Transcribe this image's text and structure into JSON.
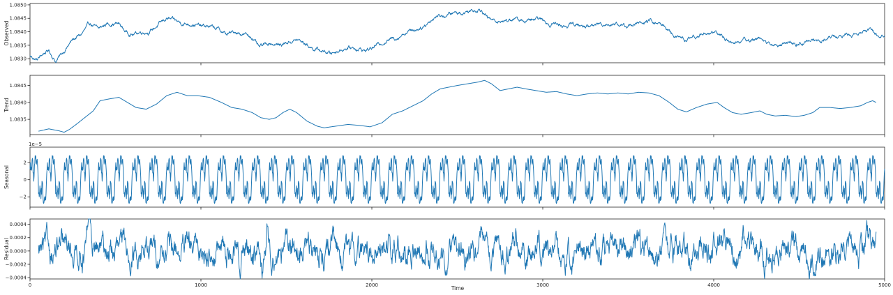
{
  "chart_data": {
    "type": "line",
    "kind": "seasonal-decomposition",
    "xlabel": "Time",
    "xlim": [
      0,
      5000
    ],
    "xticks": [
      0,
      1000,
      2000,
      3000,
      4000,
      5000
    ],
    "line_color": "#1f77b4",
    "grid": false,
    "panels": [
      {
        "ylabel": "Observed",
        "ylim": [
          1.08285,
          1.08505
        ],
        "yticks": [
          1.083,
          1.0835,
          1.084,
          1.0845,
          1.085
        ],
        "ytick_labels": [
          "1.0830",
          "1.0835",
          "1.0840",
          "1.0845",
          "1.0850"
        ],
        "offset_text": "",
        "points": [
          [
            0,
            1.0831
          ],
          [
            40,
            1.08295
          ],
          [
            80,
            1.0832
          ],
          [
            110,
            1.0833
          ],
          [
            150,
            1.0829
          ],
          [
            200,
            1.0833
          ],
          [
            250,
            1.0837
          ],
          [
            300,
            1.0839
          ],
          [
            350,
            1.0843
          ],
          [
            400,
            1.0841
          ],
          [
            450,
            1.0843
          ],
          [
            520,
            1.0843
          ],
          [
            560,
            1.084
          ],
          [
            600,
            1.0839
          ],
          [
            650,
            1.084
          ],
          [
            700,
            1.084
          ],
          [
            760,
            1.0843
          ],
          [
            800,
            1.0845
          ],
          [
            850,
            1.0844
          ],
          [
            900,
            1.0843
          ],
          [
            950,
            1.0843
          ],
          [
            1000,
            1.0842
          ],
          [
            1050,
            1.0842
          ],
          [
            1100,
            1.0841
          ],
          [
            1150,
            1.0839
          ],
          [
            1200,
            1.084
          ],
          [
            1260,
            1.0839
          ],
          [
            1300,
            1.0838
          ],
          [
            1340,
            1.0834
          ],
          [
            1400,
            1.0836
          ],
          [
            1460,
            1.0835
          ],
          [
            1500,
            1.0836
          ],
          [
            1560,
            1.0837
          ],
          [
            1600,
            1.0836
          ],
          [
            1650,
            1.0834
          ],
          [
            1700,
            1.0833
          ],
          [
            1760,
            1.0832
          ],
          [
            1800,
            1.0833
          ],
          [
            1850,
            1.0834
          ],
          [
            1900,
            1.0834
          ],
          [
            1960,
            1.0833
          ],
          [
            2000,
            1.0834
          ],
          [
            2060,
            1.0836
          ],
          [
            2100,
            1.0837
          ],
          [
            2150,
            1.0838
          ],
          [
            2200,
            1.084
          ],
          [
            2260,
            1.0841
          ],
          [
            2300,
            1.0842
          ],
          [
            2340,
            1.0844
          ],
          [
            2380,
            1.0846
          ],
          [
            2430,
            1.0846
          ],
          [
            2480,
            1.0847
          ],
          [
            2530,
            1.0847
          ],
          [
            2580,
            1.0848
          ],
          [
            2640,
            1.08485
          ],
          [
            2680,
            1.0845
          ],
          [
            2720,
            1.0844
          ],
          [
            2780,
            1.0844
          ],
          [
            2830,
            1.0845
          ],
          [
            2880,
            1.0844
          ],
          [
            2930,
            1.0844
          ],
          [
            2980,
            1.0845
          ],
          [
            3030,
            1.0843
          ],
          [
            3080,
            1.0843
          ],
          [
            3130,
            1.0842
          ],
          [
            3180,
            1.0843
          ],
          [
            3230,
            1.0842
          ],
          [
            3280,
            1.0842
          ],
          [
            3330,
            1.0843
          ],
          [
            3380,
            1.0843
          ],
          [
            3430,
            1.0843
          ],
          [
            3480,
            1.0842
          ],
          [
            3530,
            1.0843
          ],
          [
            3580,
            1.0843
          ],
          [
            3630,
            1.0844
          ],
          [
            3680,
            1.0843
          ],
          [
            3730,
            1.0841
          ],
          [
            3780,
            1.0838
          ],
          [
            3830,
            1.0837
          ],
          [
            3880,
            1.0838
          ],
          [
            3930,
            1.0839
          ],
          [
            3980,
            1.084
          ],
          [
            4030,
            1.0839
          ],
          [
            4080,
            1.0837
          ],
          [
            4130,
            1.0836
          ],
          [
            4180,
            1.0837
          ],
          [
            4230,
            1.0837
          ],
          [
            4280,
            1.0838
          ],
          [
            4330,
            1.0835
          ],
          [
            4380,
            1.0835
          ],
          [
            4430,
            1.0836
          ],
          [
            4480,
            1.0835
          ],
          [
            4530,
            1.0836
          ],
          [
            4580,
            1.0837
          ],
          [
            4630,
            1.0837
          ],
          [
            4680,
            1.0838
          ],
          [
            4730,
            1.0838
          ],
          [
            4780,
            1.0839
          ],
          [
            4830,
            1.0839
          ],
          [
            4880,
            1.0841
          ],
          [
            4930,
            1.084
          ],
          [
            4970,
            1.0839
          ],
          [
            5000,
            1.0839
          ]
        ],
        "noise": 7e-05,
        "noise_smooth": 1.2
      },
      {
        "ylabel": "Trend",
        "ylim": [
          1.08305,
          1.0848
        ],
        "yticks": [
          1.0835,
          1.084,
          1.0845
        ],
        "ytick_labels": [
          "1.0835",
          "1.0840",
          "1.0845"
        ],
        "offset_text": "",
        "x_start": 50,
        "x_end": 4950,
        "points": [
          [
            50,
            1.08315
          ],
          [
            110,
            1.08322
          ],
          [
            170,
            1.08316
          ],
          [
            200,
            1.08312
          ],
          [
            230,
            1.0832
          ],
          [
            270,
            1.08335
          ],
          [
            320,
            1.08355
          ],
          [
            370,
            1.08375
          ],
          [
            410,
            1.08405
          ],
          [
            460,
            1.0841
          ],
          [
            520,
            1.08415
          ],
          [
            570,
            1.084
          ],
          [
            620,
            1.08385
          ],
          [
            680,
            1.0838
          ],
          [
            740,
            1.08395
          ],
          [
            800,
            1.0842
          ],
          [
            860,
            1.0843
          ],
          [
            920,
            1.0842
          ],
          [
            980,
            1.0842
          ],
          [
            1050,
            1.08415
          ],
          [
            1120,
            1.084
          ],
          [
            1180,
            1.08385
          ],
          [
            1240,
            1.0838
          ],
          [
            1300,
            1.0837
          ],
          [
            1350,
            1.08355
          ],
          [
            1400,
            1.0835
          ],
          [
            1440,
            1.08355
          ],
          [
            1480,
            1.0837
          ],
          [
            1520,
            1.0838
          ],
          [
            1560,
            1.0837
          ],
          [
            1620,
            1.08345
          ],
          [
            1680,
            1.0833
          ],
          [
            1720,
            1.08325
          ],
          [
            1790,
            1.0833
          ],
          [
            1860,
            1.08335
          ],
          [
            1930,
            1.08332
          ],
          [
            1990,
            1.08328
          ],
          [
            2060,
            1.0834
          ],
          [
            2120,
            1.08365
          ],
          [
            2180,
            1.08375
          ],
          [
            2240,
            1.0839
          ],
          [
            2300,
            1.08405
          ],
          [
            2350,
            1.08425
          ],
          [
            2400,
            1.0844
          ],
          [
            2450,
            1.08445
          ],
          [
            2500,
            1.0845
          ],
          [
            2560,
            1.08455
          ],
          [
            2620,
            1.0846
          ],
          [
            2660,
            1.08465
          ],
          [
            2700,
            1.08455
          ],
          [
            2750,
            1.08435
          ],
          [
            2800,
            1.0844
          ],
          [
            2850,
            1.08445
          ],
          [
            2900,
            1.0844
          ],
          [
            2960,
            1.08435
          ],
          [
            3020,
            1.0843
          ],
          [
            3080,
            1.08432
          ],
          [
            3140,
            1.08425
          ],
          [
            3200,
            1.0842
          ],
          [
            3260,
            1.08425
          ],
          [
            3320,
            1.08428
          ],
          [
            3380,
            1.08425
          ],
          [
            3440,
            1.08428
          ],
          [
            3500,
            1.08425
          ],
          [
            3560,
            1.0843
          ],
          [
            3620,
            1.08428
          ],
          [
            3680,
            1.0842
          ],
          [
            3740,
            1.084
          ],
          [
            3790,
            1.0838
          ],
          [
            3840,
            1.08372
          ],
          [
            3900,
            1.08385
          ],
          [
            3960,
            1.08395
          ],
          [
            4020,
            1.084
          ],
          [
            4060,
            1.08385
          ],
          [
            4110,
            1.0837
          ],
          [
            4160,
            1.08365
          ],
          [
            4220,
            1.0837
          ],
          [
            4270,
            1.08375
          ],
          [
            4310,
            1.08365
          ],
          [
            4360,
            1.0836
          ],
          [
            4420,
            1.08362
          ],
          [
            4480,
            1.08358
          ],
          [
            4530,
            1.08362
          ],
          [
            4580,
            1.0837
          ],
          [
            4620,
            1.08385
          ],
          [
            4680,
            1.08385
          ],
          [
            4740,
            1.08382
          ],
          [
            4800,
            1.08385
          ],
          [
            4860,
            1.0839
          ],
          [
            4900,
            1.084
          ],
          [
            4930,
            1.08405
          ],
          [
            4950,
            1.084
          ]
        ],
        "noise": 0,
        "noise_smooth": 1
      },
      {
        "ylabel": "Seasonal",
        "ylim": [
          -3.2,
          3.8
        ],
        "yticks": [
          -2,
          0,
          2
        ],
        "ytick_labels": [
          "−2",
          "0",
          "2"
        ],
        "offset_text": "1e−5",
        "periodic": true,
        "period": 100,
        "amplitude": 2.9,
        "noise": 0
      },
      {
        "ylabel": "Residual",
        "ylim": [
          -0.00042,
          0.00048
        ],
        "yticks": [
          -0.0004,
          -0.0002,
          0,
          0.0002,
          0.0004
        ],
        "ytick_labels": [
          "−0.0004",
          "−0.0002",
          "0.0000",
          "0.0002",
          "0.0004"
        ],
        "offset_text": "",
        "x_start": 50,
        "x_end": 4950,
        "points": [
          [
            50,
            0
          ],
          [
            4950,
            0
          ]
        ],
        "noise": 0.00011,
        "noise_smooth": 2.2,
        "spikes": [
          [
            350,
            0.00046
          ],
          [
            340,
            0.0002
          ],
          [
            1230,
            -0.0003
          ],
          [
            1390,
            0.00033
          ],
          [
            1360,
            -0.00036
          ],
          [
            2100,
            0.00023
          ],
          [
            2200,
            -0.0002
          ],
          [
            2620,
            -0.00022
          ],
          [
            3080,
            0.00029
          ],
          [
            3050,
            -0.0002
          ],
          [
            4170,
            0.00024
          ],
          [
            4300,
            -0.0002
          ]
        ]
      }
    ]
  }
}
